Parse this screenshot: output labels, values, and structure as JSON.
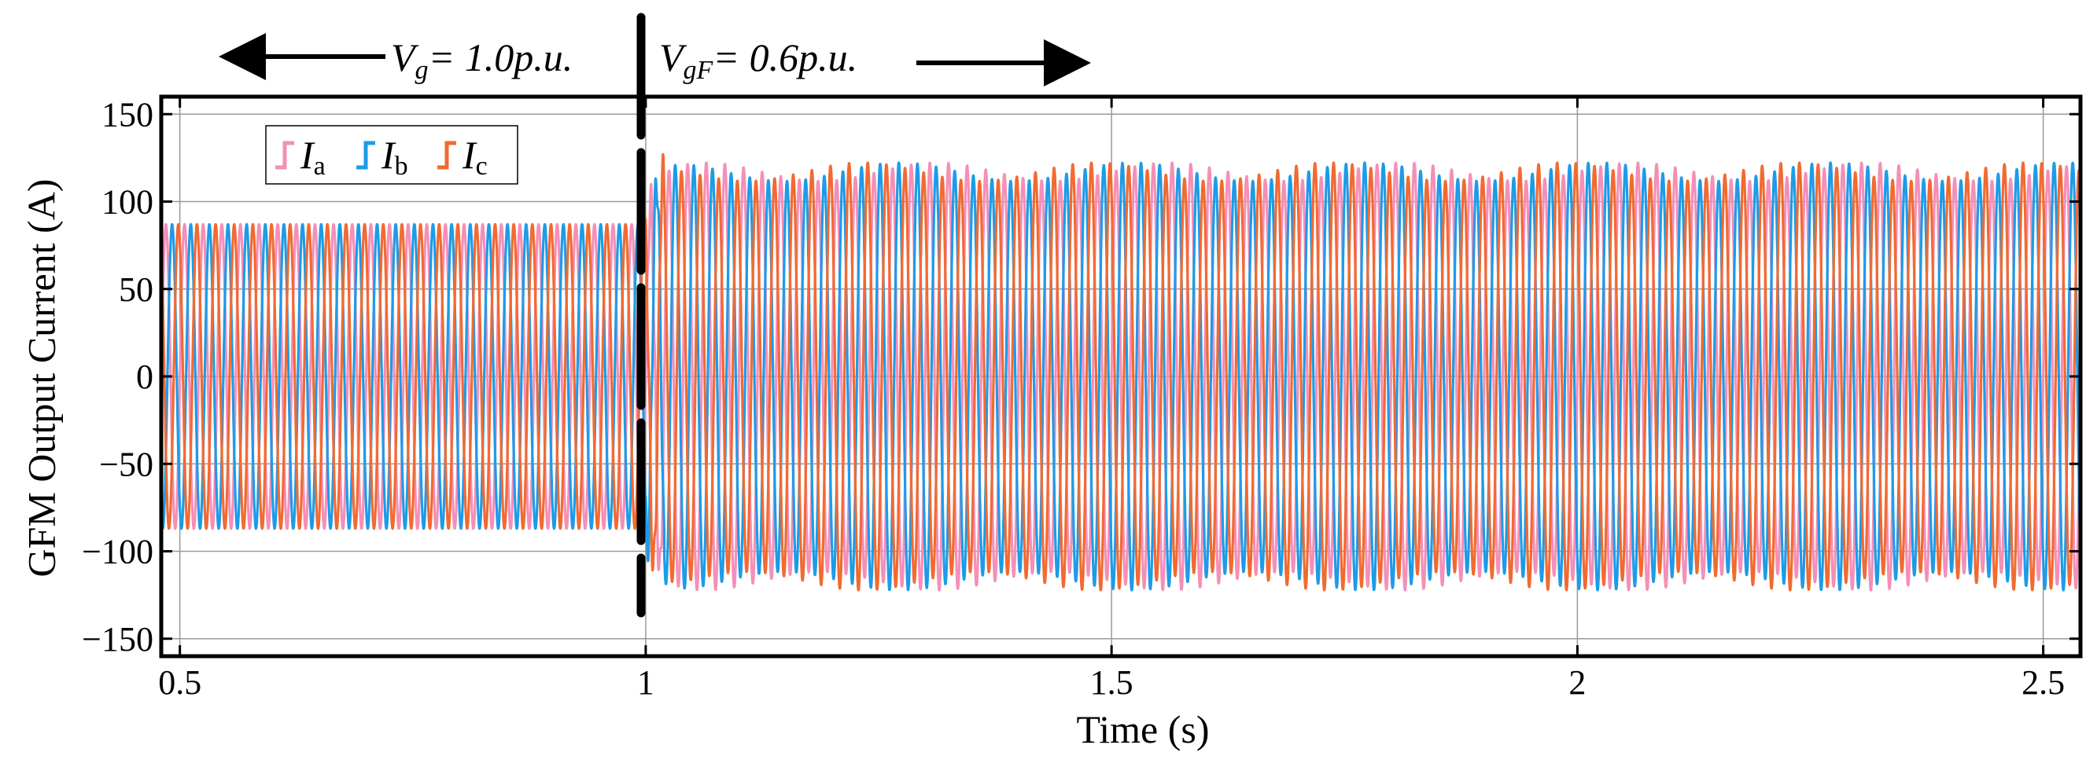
{
  "chart_data": {
    "type": "line",
    "xlabel": "Time (s)",
    "ylabel": "GFM Output Current (A)",
    "xlim": [
      0.48,
      2.54
    ],
    "ylim": [
      -160,
      160
    ],
    "x_ticks": [
      0.5,
      1,
      1.5,
      2,
      2.5
    ],
    "x_tick_labels": [
      "0.5",
      "1",
      "1.5",
      "2",
      "2.5"
    ],
    "y_ticks": [
      150,
      100,
      50,
      0,
      -50,
      -100,
      -150
    ],
    "y_tick_labels": [
      "150",
      "100",
      "50",
      "0",
      "−50",
      "−100",
      "−150"
    ],
    "grid": true,
    "legend_position": "top-left",
    "frequency_hz": 50,
    "fault_time_s": 1.0,
    "series": [
      {
        "name": "Ia",
        "name_main": "I",
        "name_sub": "a",
        "color": "#F48FB8",
        "phase_deg": 0,
        "amplitude_pre_A": 87,
        "amplitude_post_A": 117
      },
      {
        "name": "Ib",
        "name_main": "I",
        "name_sub": "b",
        "color": "#1E9BE8",
        "phase_deg": -120,
        "amplitude_pre_A": 87,
        "amplitude_post_A": 117
      },
      {
        "name": "Ic",
        "name_main": "I",
        "name_sub": "c",
        "color": "#F26A32",
        "phase_deg": 120,
        "amplitude_pre_A": 87,
        "amplitude_post_A": 117
      }
    ],
    "annotations": {
      "pre": {
        "main": "V",
        "sub": "g",
        "rest": "= 1.0p.u."
      },
      "post": {
        "main": "V",
        "sub": "gF",
        "rest": "= 0.6p.u."
      }
    }
  }
}
